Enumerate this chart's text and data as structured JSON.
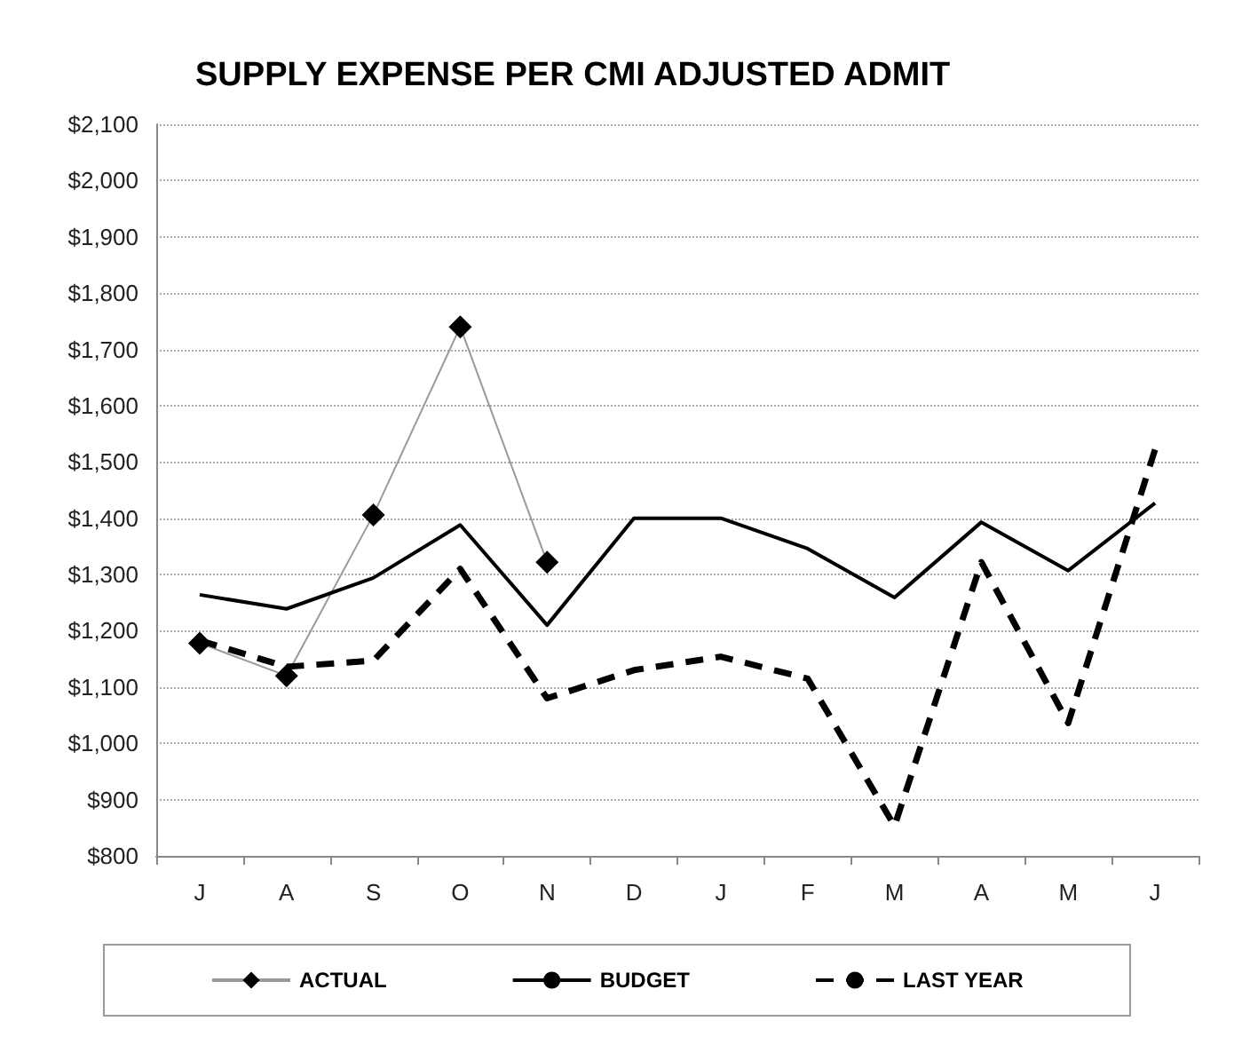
{
  "chart_data": {
    "type": "line",
    "title": "SUPPLY EXPENSE PER CMI ADJUSTED ADMIT",
    "categories": [
      "J",
      "A",
      "S",
      "O",
      "N",
      "D",
      "J",
      "F",
      "M",
      "A",
      "M",
      "J"
    ],
    "series": [
      {
        "name": "ACTUAL",
        "color": "#000000",
        "marker": "diamond",
        "line_style": "solid",
        "values": [
          1178,
          1120,
          1406,
          1740,
          1322,
          null,
          null,
          null,
          null,
          null,
          null,
          null
        ]
      },
      {
        "name": "BUDGET",
        "color": "#000000",
        "marker": "none",
        "line_style": "solid",
        "values": [
          1264,
          1239,
          1294,
          1388,
          1210,
          1400,
          1400,
          1346,
          1259,
          1393,
          1307,
          1427
        ]
      },
      {
        "name": "LAST YEAR",
        "color": "#000000",
        "marker": "none",
        "line_style": "dashed",
        "values": [
          1183,
          1136,
          1147,
          1310,
          1080,
          1130,
          1154,
          1115,
          853,
          1322,
          1036,
          1522
        ]
      }
    ],
    "ylim": [
      800,
      2100
    ],
    "yticks": [
      {
        "value": 800,
        "label": "$800"
      },
      {
        "value": 900,
        "label": "$900"
      },
      {
        "value": 1000,
        "label": "$1,000"
      },
      {
        "value": 1100,
        "label": "$1,100"
      },
      {
        "value": 1200,
        "label": "$1,200"
      },
      {
        "value": 1300,
        "label": "$1,300"
      },
      {
        "value": 1400,
        "label": "$1,400"
      },
      {
        "value": 1500,
        "label": "$1,500"
      },
      {
        "value": 1600,
        "label": "$1,600"
      },
      {
        "value": 1700,
        "label": "$1,700"
      },
      {
        "value": 1800,
        "label": "$1,800"
      },
      {
        "value": 1900,
        "label": "$1,900"
      },
      {
        "value": 2000,
        "label": "$2,000"
      },
      {
        "value": 2100,
        "label": "$2,100"
      }
    ],
    "grid": "y",
    "legend": "bottom"
  }
}
